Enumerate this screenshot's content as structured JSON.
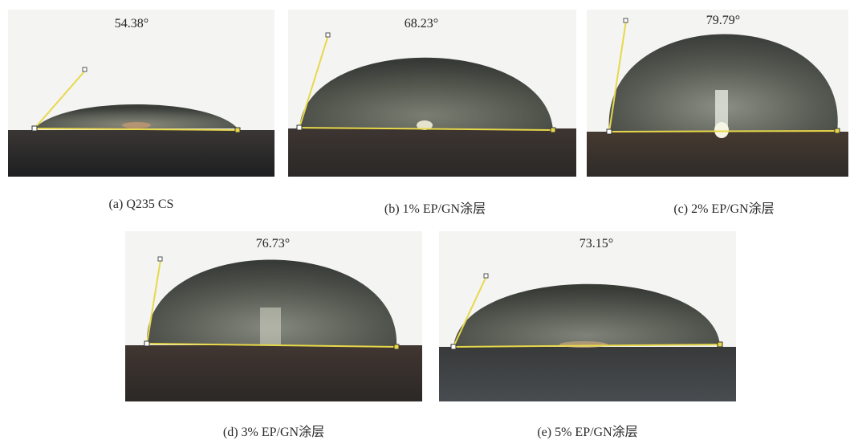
{
  "panels": [
    {
      "id": "a",
      "angle": "54.38°",
      "caption": "(a) Q235 CS"
    },
    {
      "id": "b",
      "angle": "68.23°",
      "caption": "(b) 1% EP/GN涂层"
    },
    {
      "id": "c",
      "angle": "79.79°",
      "caption": "(c) 2% EP/GN涂层"
    },
    {
      "id": "d",
      "angle": "76.73°",
      "caption": "(d) 3% EP/GN涂层"
    },
    {
      "id": "e",
      "angle": "73.15°",
      "caption": "(e) 5% EP/GN涂层"
    }
  ],
  "colors": {
    "background": "#f4f4f2",
    "substrate": "#2a2a2a",
    "droplet": "#5c6058",
    "baseline": "#e8d84a"
  }
}
